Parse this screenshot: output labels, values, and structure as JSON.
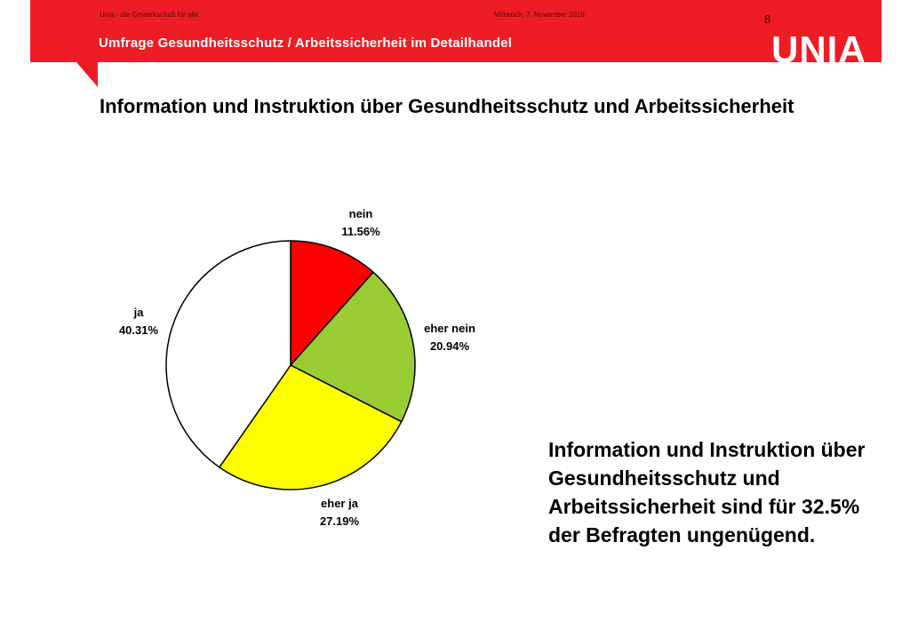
{
  "header": {
    "org_line": "Unia - die Gewerkschaft für alle",
    "date": "Mittwoch, 7. November 2018",
    "page_number": "8",
    "subtitle": "Umfrage Gesundheitsschutz / Arbeitssicherheit im Detailhandel",
    "logo_text": "UNIA",
    "brand_color": "#ee1c25"
  },
  "title": "Information und Instruktion über Gesundheitsschutz und Arbeitssicherheit",
  "chart_data": {
    "type": "pie",
    "start_angle_deg": 0,
    "direction": "clockwise",
    "slices": [
      {
        "label": "nein",
        "value": 11.56,
        "value_text": "11.56%",
        "color": "#ff0000"
      },
      {
        "label": "eher nein",
        "value": 20.94,
        "value_text": "20.94%",
        "color": "#99cc33"
      },
      {
        "label": "eher ja",
        "value": 27.19,
        "value_text": "27.19%",
        "color": "#ffff00"
      },
      {
        "label": "ja",
        "value": 40.31,
        "value_text": "40.31%",
        "color": "#ffffff"
      }
    ]
  },
  "note": "Information und Instruktion über Gesundheitsschutz und Arbeitssicherheit sind für 32.5% der Befragten ungenügend."
}
